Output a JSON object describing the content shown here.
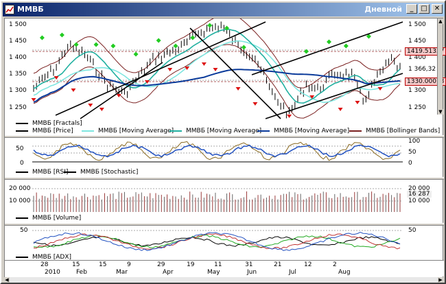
{
  "window": {
    "title": "ММВБ",
    "interval": "Дневной",
    "buttons": {
      "minimize": "_",
      "maximize": "□",
      "close": "✕"
    }
  },
  "price_panel": {
    "ticks": [
      "1 500",
      "1 450",
      "1 400",
      "1 350",
      "1 300",
      "1 250"
    ],
    "right_ticks": [
      "1 500",
      "1 450",
      "1 400",
      "1 350",
      "1 300",
      "1 250"
    ],
    "markers": {
      "upper": "1419.51357",
      "last": "1 366,32",
      "lower": "1330.00013"
    },
    "legend": [
      {
        "label": "ММВБ [Fractals]",
        "color": "#000000"
      },
      {
        "label": "ММВБ [Price]",
        "color": "#000000"
      },
      {
        "label": "ММВБ [Moving Average]",
        "color": "#7ee6e0"
      },
      {
        "label": "ММВБ [Moving Average]",
        "color": "#20b0a0"
      },
      {
        "label": "ММВБ [Moving Average]",
        "color": "#0a3a9a"
      },
      {
        "label": "ММВБ [Bollinger Bands]",
        "color": "#7a2020"
      }
    ]
  },
  "osc_panel": {
    "ticks": [
      "50",
      "0"
    ],
    "right_ticks": [
      "100",
      "50",
      "0"
    ],
    "legend": [
      {
        "label": "ММВБ [RSI]",
        "color": "#000000"
      },
      {
        "label": "ММВБ [Stochastic]",
        "color": "#000000"
      }
    ]
  },
  "volume_panel": {
    "ticks": [
      "20 000",
      "10 000"
    ],
    "right_ticks": [
      "20 000",
      "10 000"
    ],
    "last": "16 287",
    "legend": [
      {
        "label": "ММВБ [Volume]",
        "color": "#000000"
      }
    ]
  },
  "adx_panel": {
    "ticks": [
      "50"
    ],
    "right_ticks": [
      "50"
    ],
    "legend": [
      {
        "label": "ММВБ [ADX]",
        "color": "#000000"
      }
    ]
  },
  "time_axis": {
    "days": [
      "28",
      "15",
      "15",
      "9",
      "29",
      "19",
      "11",
      "31",
      "21",
      "12",
      "2"
    ],
    "months": [
      "2010",
      "Feb",
      "Mar",
      "Apr",
      "May",
      "Jun",
      "Jul",
      "Aug"
    ]
  },
  "colors": {
    "fractal_up": "#22cc22",
    "fractal_down": "#dd1111",
    "ma_fast": "#7ee6e0",
    "ma_mid": "#20b0a0",
    "ma_slow": "#0a3a9a",
    "bollinger": "#7a2020",
    "rsi": "#2050c0",
    "stoch": "#8a6a20"
  }
}
